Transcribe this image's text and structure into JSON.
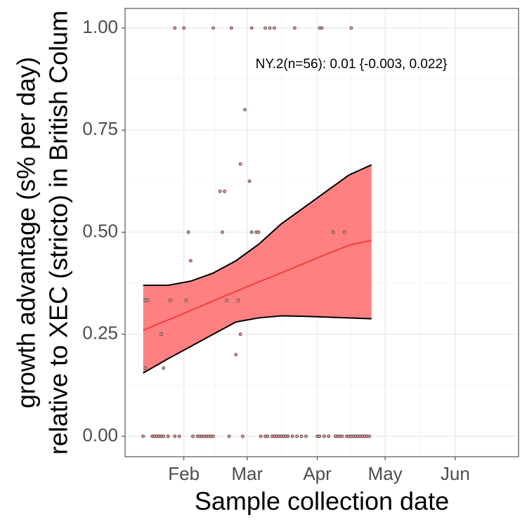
{
  "chart_data": {
    "type": "scatter",
    "xlabel": "Sample collection date",
    "ylabel": [
      "growth advantage (s% per day)",
      "relative to XEC (stricto) in British Colum"
    ],
    "annotation": "NY.2(n=56): 0.01 {-0.003, 0.022}",
    "xlim": [
      6,
      180
    ],
    "ylim": [
      -0.05,
      1.048
    ],
    "xticks": [
      {
        "value": 32,
        "label": "Feb"
      },
      {
        "value": 60,
        "label": "Mar"
      },
      {
        "value": 91,
        "label": "Apr"
      },
      {
        "value": 121,
        "label": "May"
      },
      {
        "value": 152,
        "label": "Jun"
      }
    ],
    "yticks": [
      {
        "value": 0,
        "label": "0.00"
      },
      {
        "value": 0.25,
        "label": "0.25"
      },
      {
        "value": 0.5,
        "label": "0.50"
      },
      {
        "value": 0.75,
        "label": "0.75"
      },
      {
        "value": 1,
        "label": "1.00"
      }
    ],
    "grid": true,
    "point_color": "#f19a94",
    "x": [
      28,
      32,
      45,
      53,
      62,
      68,
      70,
      72,
      81,
      92,
      93,
      106,
      59,
      57,
      61,
      48,
      50,
      34,
      49,
      62,
      64,
      65,
      98,
      103,
      35,
      15,
      16,
      26,
      33,
      51,
      56,
      22,
      57,
      55,
      15,
      23,
      14,
      18,
      19,
      20,
      21,
      22,
      23,
      25,
      28,
      30,
      36,
      38,
      39,
      40,
      41,
      42,
      43,
      44,
      45,
      52,
      58,
      66,
      68,
      69,
      71,
      72,
      73,
      74,
      75,
      76,
      77,
      78,
      80,
      82,
      84,
      86,
      91,
      92,
      94,
      96,
      99,
      100,
      101,
      102,
      104,
      105,
      106,
      107,
      108,
      109,
      110,
      111,
      112,
      113,
      114
    ],
    "values": [
      1,
      1,
      1,
      1,
      1,
      1,
      1,
      1,
      1,
      1,
      1,
      1,
      0.8,
      0.667,
      0.625,
      0.6,
      0.6,
      0.5,
      0.5,
      0.5,
      0.5,
      0.5,
      0.5,
      0.5,
      0.43,
      0.333,
      0.333,
      0.333,
      0.333,
      0.333,
      0.333,
      0.25,
      0.25,
      0.2,
      0.167,
      0.167,
      0,
      0,
      0,
      0,
      0,
      0,
      0,
      0,
      0,
      0,
      0,
      0,
      0,
      0,
      0,
      0,
      0,
      0,
      0,
      0,
      0,
      0,
      0,
      0,
      0,
      0,
      0,
      0,
      0,
      0,
      0,
      0,
      0,
      0,
      0,
      0,
      0,
      0,
      0,
      0,
      0,
      0,
      0,
      0,
      0,
      0,
      0,
      0,
      0,
      0,
      0,
      0,
      0,
      0,
      0
    ],
    "fit": {
      "color": "#f0403c",
      "band_color": "#ff8080",
      "x": [
        14,
        25,
        35,
        45,
        55,
        65,
        75,
        85,
        95,
        105,
        115
      ],
      "values": [
        0.26,
        0.285,
        0.308,
        0.332,
        0.355,
        0.378,
        0.4,
        0.423,
        0.446,
        0.468,
        0.48
      ],
      "upper": [
        0.37,
        0.37,
        0.38,
        0.4,
        0.43,
        0.47,
        0.52,
        0.56,
        0.6,
        0.64,
        0.665
      ],
      "lower": [
        0.155,
        0.19,
        0.22,
        0.25,
        0.28,
        0.29,
        0.295,
        0.294,
        0.292,
        0.29,
        0.288
      ]
    }
  }
}
